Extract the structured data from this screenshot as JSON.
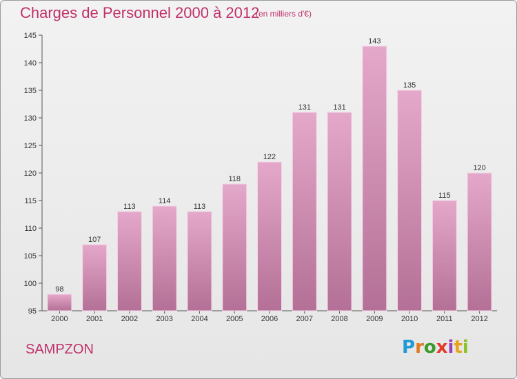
{
  "header": {
    "title": "Charges de Personnel 2000 à 2012",
    "subtitle": "(en milliers d'€)"
  },
  "footer": {
    "commune": "SAMPZON"
  },
  "logo": {
    "letters": [
      "P",
      "r",
      "o",
      "x",
      "i",
      "t",
      "i"
    ],
    "colors": [
      "#1f9ad6",
      "#e07a1f",
      "#3c9a2c",
      "#e03a2c",
      "#9a3fb4",
      "#e8a41c",
      "#8ac226"
    ]
  },
  "chart_data": {
    "type": "bar",
    "title": "Charges de Personnel 2000 à 2012",
    "subtitle": "(en milliers d'€)",
    "categories": [
      "2000",
      "2001",
      "2002",
      "2003",
      "2004",
      "2005",
      "2006",
      "2007",
      "2008",
      "2009",
      "2010",
      "2011",
      "2012"
    ],
    "values": [
      98,
      107,
      113,
      114,
      113,
      118,
      122,
      131,
      131,
      143,
      135,
      115,
      120
    ],
    "ylim": [
      95,
      145
    ],
    "yticks": [
      95,
      100,
      105,
      110,
      115,
      120,
      125,
      130,
      135,
      140,
      145
    ],
    "grid": false,
    "bar_color": "#d98fba"
  }
}
